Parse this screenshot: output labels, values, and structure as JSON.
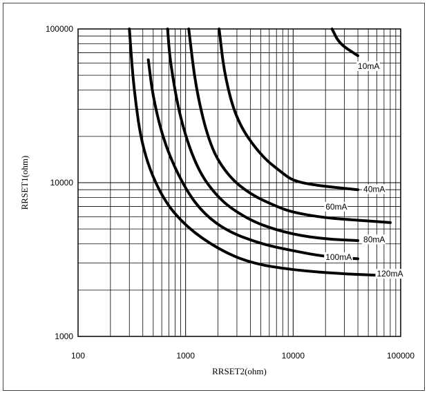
{
  "chart_data": {
    "type": "line",
    "title": "",
    "xlabel": "RRSET2(ohm)",
    "ylabel": "RRSET1(ohm)",
    "xscale": "log",
    "yscale": "log",
    "xlim": [
      100,
      100000
    ],
    "ylim": [
      1000,
      100000
    ],
    "grid": true,
    "x_tick_labels": [
      "100",
      "1000",
      "10000",
      "100000"
    ],
    "y_tick_labels": [
      "1000",
      "10000",
      "100000"
    ],
    "series": [
      {
        "name": "10mA",
        "points": [
          [
            23000,
            100000
          ],
          [
            27000,
            80000
          ],
          [
            40000,
            67000
          ]
        ]
      },
      {
        "name": "40mA",
        "points": [
          [
            2050,
            100000
          ],
          [
            2300,
            50000
          ],
          [
            3000,
            25000
          ],
          [
            5000,
            15000
          ],
          [
            8000,
            11500
          ],
          [
            10000,
            10300
          ],
          [
            15000,
            9700
          ],
          [
            25000,
            9300
          ],
          [
            40000,
            9000
          ]
        ]
      },
      {
        "name": "60mA",
        "points": [
          [
            1070,
            100000
          ],
          [
            1250,
            40000
          ],
          [
            1700,
            17000
          ],
          [
            2500,
            11000
          ],
          [
            4000,
            8400
          ],
          [
            7000,
            7000
          ],
          [
            10000,
            6400
          ],
          [
            20000,
            5900
          ],
          [
            40000,
            5700
          ],
          [
            80000,
            5500
          ]
        ]
      },
      {
        "name": "80mA",
        "points": [
          [
            680,
            100000
          ],
          [
            720,
            60000
          ],
          [
            900,
            25000
          ],
          [
            1300,
            12000
          ],
          [
            2000,
            8000
          ],
          [
            3000,
            6400
          ],
          [
            5000,
            5300
          ],
          [
            10000,
            4600
          ],
          [
            20000,
            4300
          ],
          [
            40000,
            4200
          ]
        ]
      },
      {
        "name": "100mA",
        "points": [
          [
            450,
            63000
          ],
          [
            500,
            35000
          ],
          [
            650,
            17000
          ],
          [
            1000,
            9000
          ],
          [
            1500,
            6200
          ],
          [
            2500,
            4800
          ],
          [
            5000,
            4000
          ],
          [
            10000,
            3600
          ],
          [
            20000,
            3300
          ],
          [
            40000,
            3200
          ]
        ]
      },
      {
        "name": "120mA",
        "points": [
          [
            300,
            100000
          ],
          [
            330,
            40000
          ],
          [
            400,
            16000
          ],
          [
            600,
            8000
          ],
          [
            1000,
            5200
          ],
          [
            2000,
            3700
          ],
          [
            4000,
            3000
          ],
          [
            10000,
            2700
          ],
          [
            30000,
            2550
          ],
          [
            60000,
            2500
          ]
        ]
      }
    ]
  }
}
